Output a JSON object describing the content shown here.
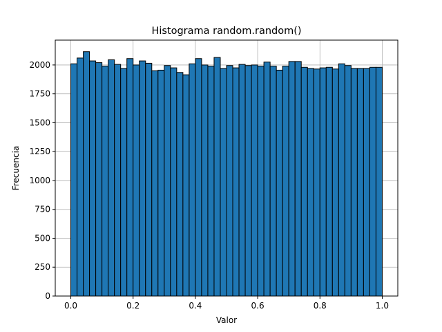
{
  "chart_data": {
    "type": "bar",
    "title": "Histograma random.random()",
    "xlabel": "Valor",
    "ylabel": "Frecuencia",
    "xlim": [
      -0.05,
      1.05
    ],
    "ylim": [
      0,
      2215
    ],
    "xticks": [
      "0.0",
      "0.2",
      "0.4",
      "0.6",
      "0.8",
      "1.0"
    ],
    "xtick_values": [
      0.0,
      0.2,
      0.4,
      0.6,
      0.8,
      1.0
    ],
    "yticks": [
      "0",
      "250",
      "500",
      "750",
      "1000",
      "1250",
      "1500",
      "1750",
      "2000"
    ],
    "ytick_values": [
      0,
      250,
      500,
      750,
      1000,
      1250,
      1500,
      1750,
      2000
    ],
    "grid": true,
    "bin_range": [
      0.0,
      1.0
    ],
    "values": [
      2010,
      2060,
      2115,
      2035,
      2020,
      1990,
      2045,
      2005,
      1970,
      2055,
      2000,
      2035,
      2015,
      1950,
      1955,
      1995,
      1975,
      1935,
      1915,
      2010,
      2055,
      2000,
      1990,
      2065,
      1970,
      1995,
      1975,
      2005,
      1995,
      2000,
      1990,
      2025,
      1990,
      1955,
      1990,
      2030,
      2030,
      1980,
      1970,
      1965,
      1975,
      1980,
      1965,
      2010,
      1995,
      1970,
      1970,
      1970,
      1980,
      1980
    ],
    "colors": {
      "bar": "#1f77b4",
      "edge": "#000000",
      "grid": "#b0b0b0"
    }
  }
}
